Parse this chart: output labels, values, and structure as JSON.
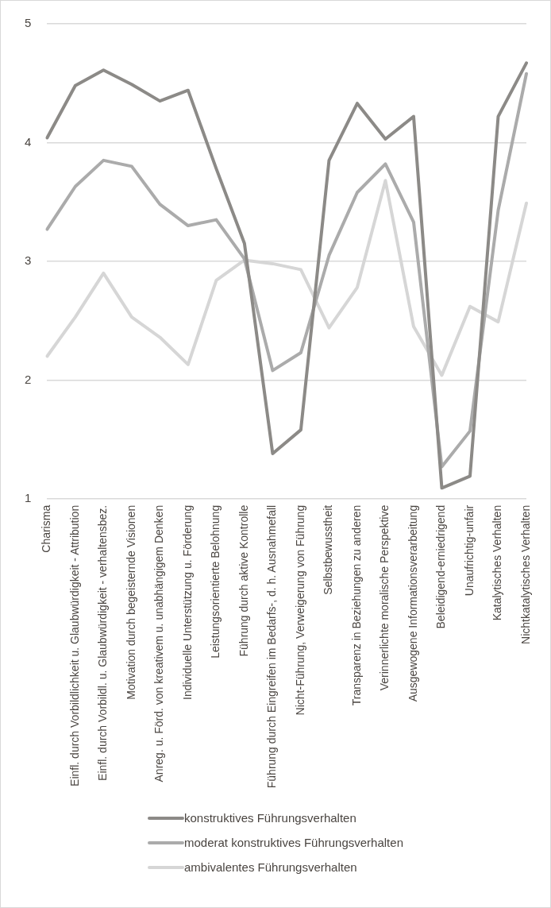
{
  "chart_data": {
    "type": "line",
    "categories": [
      "Charisma",
      "Einfl. durch Vorbildlichkeit u. Glaubwürdigkeit - Attribution",
      "Einfl. durch Vorbildl. u. Glaubwürdigkeit - verhaltensbez.",
      "Motivation durch begeisternde Visionen",
      "Anreg. u. Förd. von kreativem u. unabhängigem Denken",
      "Individuelle Unterstützung u. Förderung",
      "Leistungsorientierte Belohnung",
      "Führung durch aktive Kontrolle",
      "Führung durch Eingreifen im Bedarfs-, d. h. Ausnahmefall",
      "Nicht-Führung, Verweigerung von Führung",
      "Selbstbewusstheit",
      "Transparenz in Beziehungen zu anderen",
      "Verinnerlichte moralische Perspektive",
      "Ausgewogene Informationsverarbeitung",
      "Beleidigend-erniedrigend",
      "Unaufrichtig-unfair",
      "Katalytisches Verhalten",
      "Nichtkatalytisches Verhalten"
    ],
    "series": [
      {
        "name": "konstruktives Führungsverhalten",
        "color": "#8c8a87",
        "values": [
          4.04,
          4.48,
          4.61,
          4.49,
          4.35,
          4.44,
          3.78,
          3.15,
          1.38,
          1.58,
          3.85,
          4.33,
          4.03,
          4.22,
          1.09,
          1.19,
          4.22,
          4.67
        ]
      },
      {
        "name": "moderat konstruktives Führungsverhalten",
        "color": "#ababab",
        "values": [
          3.27,
          3.63,
          3.85,
          3.8,
          3.48,
          3.3,
          3.35,
          3.02,
          2.08,
          2.23,
          3.05,
          3.58,
          3.82,
          3.33,
          1.27,
          1.57,
          3.43,
          4.58
        ]
      },
      {
        "name": "ambivalentes Führungsverhalten",
        "color": "#d6d6d6",
        "values": [
          2.2,
          2.53,
          2.9,
          2.53,
          2.36,
          2.13,
          2.84,
          3.01,
          2.98,
          2.93,
          2.44,
          2.78,
          3.68,
          2.45,
          2.04,
          2.62,
          2.49,
          3.49
        ]
      }
    ],
    "ylim": [
      1,
      5
    ],
    "yticks": [
      1,
      2,
      3,
      4,
      5
    ],
    "grid": "y",
    "legend": "bottom",
    "marker": "none",
    "line_style": "solid"
  }
}
